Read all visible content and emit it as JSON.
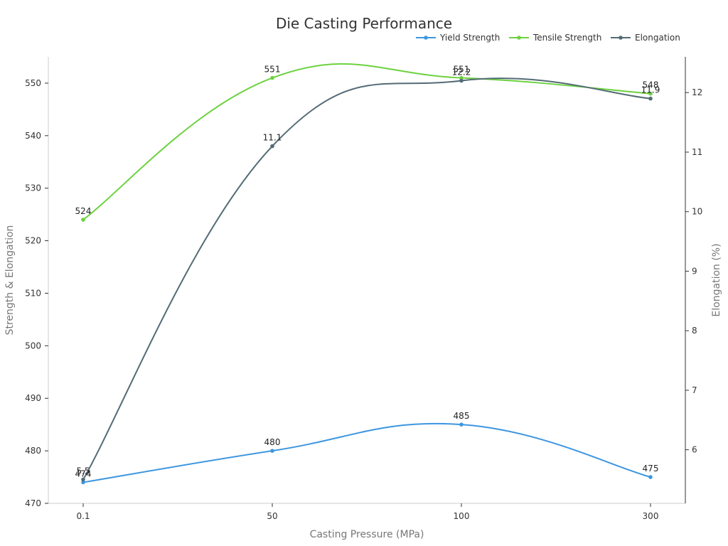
{
  "chart_data": {
    "type": "line",
    "title": "Die Casting Performance",
    "xlabel": "Casting Pressure (MPa)",
    "ylabel": "Strength & Elongation",
    "y2label": "Elongation (%)",
    "categories": [
      "0.1",
      "50",
      "100",
      "300"
    ],
    "ylim": [
      470,
      555
    ],
    "y_ticks": [
      470,
      480,
      490,
      500,
      510,
      520,
      530,
      540,
      550
    ],
    "y2lim": [
      5.1,
      12.6
    ],
    "y2_ticks": [
      6,
      7,
      8,
      9,
      10,
      11,
      12
    ],
    "series": [
      {
        "name": "Yield Strength",
        "axis": "left",
        "color": "#3d96e0",
        "values": [
          474,
          480,
          485,
          475
        ],
        "labels": [
          "474",
          "480",
          "485",
          "475"
        ]
      },
      {
        "name": "Tensile Strength",
        "axis": "left",
        "color": "#6cd23f",
        "values": [
          524,
          551,
          551,
          548
        ],
        "labels": [
          "524",
          "551",
          "551",
          "548"
        ]
      },
      {
        "name": "Elongation",
        "axis": "right",
        "color": "#536b75",
        "values": [
          5.5,
          11.1,
          12.2,
          11.9
        ],
        "labels": [
          "5.5",
          "11.1",
          "12.2",
          "11.9"
        ]
      }
    ]
  }
}
